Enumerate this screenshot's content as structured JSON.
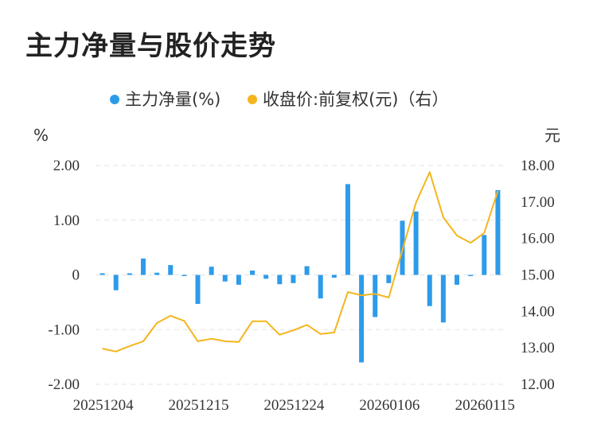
{
  "title": "主力净量与股价走势",
  "legend": {
    "bar_label": "主力净量(%)",
    "line_label": "收盘价:前复权(元)（右）",
    "bar_color": "#2E9BEA",
    "line_color": "#F5B51E"
  },
  "chart_data": {
    "type": "bar",
    "left_unit": "%",
    "right_unit": "元",
    "left_ticks": [
      "2.00",
      "1.00",
      "0",
      "-1.00",
      "-2.00"
    ],
    "right_ticks": [
      "18.00",
      "17.00",
      "16.00",
      "15.00",
      "14.00",
      "13.00",
      "12.00"
    ],
    "left_ylim": [
      -2,
      2
    ],
    "right_ylim": [
      12,
      18
    ],
    "x_tick_labels": [
      "20251204",
      "20251215",
      "20251224",
      "20260106",
      "20260115"
    ],
    "x_tick_indices": [
      0,
      7,
      14,
      21,
      28
    ],
    "grid": "horizontal dashed",
    "series": [
      {
        "name": "主力净量(%)",
        "type": "bar",
        "axis": "left",
        "values": [
          0.03,
          -0.28,
          0.03,
          0.3,
          0.04,
          0.18,
          -0.01,
          -0.53,
          0.15,
          -0.12,
          -0.18,
          0.08,
          -0.07,
          -0.17,
          -0.15,
          0.16,
          -0.43,
          -0.05,
          1.66,
          -1.6,
          -0.77,
          -0.15,
          0.99,
          1.16,
          -0.57,
          -0.87,
          -0.18,
          -0.01,
          0.73,
          1.55
        ]
      },
      {
        "name": "收盘价:前复权(元)（右）",
        "type": "line",
        "axis": "right",
        "values": [
          12.98,
          12.9,
          13.05,
          13.18,
          13.68,
          13.88,
          13.74,
          13.18,
          13.25,
          13.18,
          13.16,
          13.73,
          13.73,
          13.36,
          13.48,
          13.63,
          13.38,
          13.42,
          14.53,
          14.44,
          14.48,
          14.38,
          15.68,
          16.98,
          17.82,
          16.58,
          16.08,
          15.88,
          16.15,
          17.3
        ]
      }
    ]
  }
}
